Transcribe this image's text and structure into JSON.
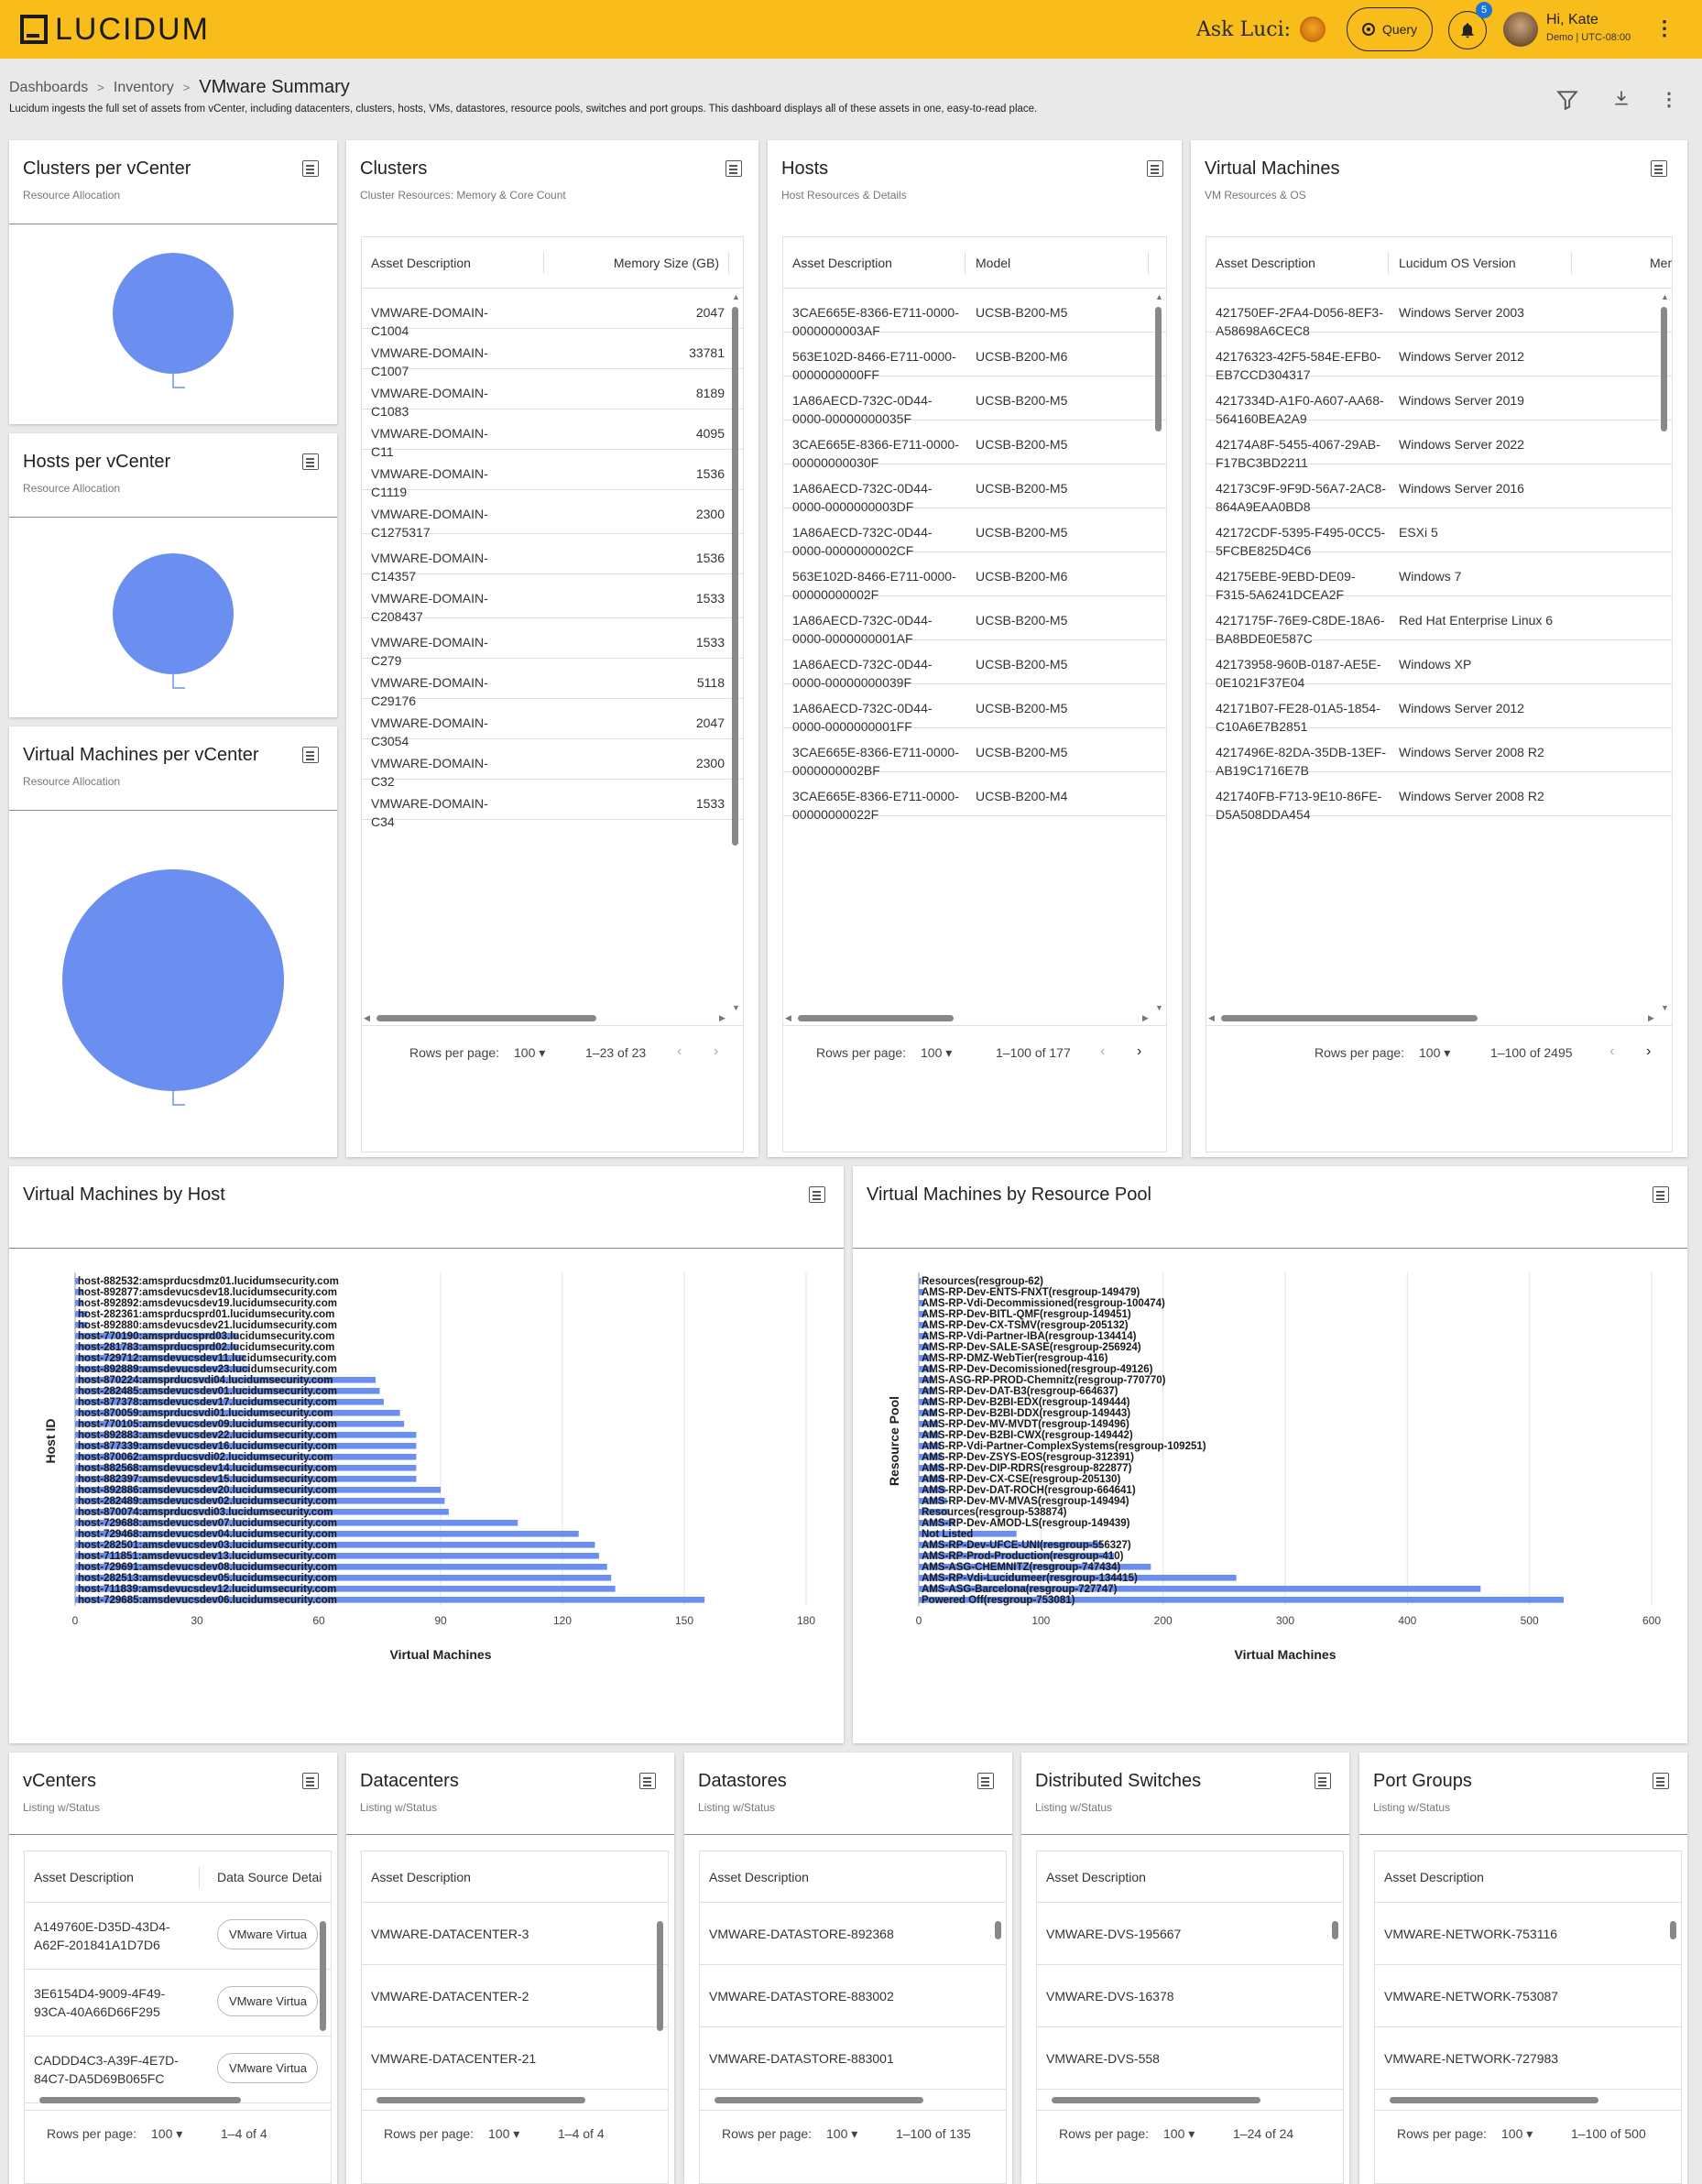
{
  "header": {
    "logo_text": "LUCIDUM",
    "ask_luci": "Ask Luci:",
    "query_label": "Query",
    "notifications_count": "5",
    "user_greeting": "Hi, Kate",
    "user_subtitle": "Demo | UTC-08:00",
    "accent_color": "#f9bd1b"
  },
  "breadcrumb": {
    "items": [
      "Dashboards",
      "Inventory"
    ],
    "current": "VMware Summary",
    "separator": ">"
  },
  "page_description": "Lucidum ingests the full set of assets from vCenter, including datacenters, clusters, hosts, VMs, datastores, resource pools, switches and port groups. This dashboard displays all of these assets in one, easy-to-read place.",
  "pie_panels": [
    {
      "title": "Clusters per vCenter",
      "subtitle": "Resource Allocation"
    },
    {
      "title": "Hosts per vCenter",
      "subtitle": "Resource Allocation"
    },
    {
      "title": "Virtual Machines per vCenter",
      "subtitle": "Resource Allocation"
    }
  ],
  "clusters": {
    "title": "Clusters",
    "subtitle": "Cluster Resources: Memory & Core Count",
    "columns": [
      "Asset Description",
      "Memory Size (GB)"
    ],
    "rows": [
      [
        "VMWARE-DOMAIN-C1004",
        "2047"
      ],
      [
        "VMWARE-DOMAIN-C1007",
        "33781"
      ],
      [
        "VMWARE-DOMAIN-C1083",
        "8189"
      ],
      [
        "VMWARE-DOMAIN-C11",
        "4095"
      ],
      [
        "VMWARE-DOMAIN-C1119",
        "1536"
      ],
      [
        "VMWARE-DOMAIN-C1275317",
        "2300"
      ],
      [
        "VMWARE-DOMAIN-C14357",
        "1536"
      ],
      [
        "VMWARE-DOMAIN-C208437",
        "1533"
      ],
      [
        "VMWARE-DOMAIN-C279",
        "1533"
      ],
      [
        "VMWARE-DOMAIN-C29176",
        "5118"
      ],
      [
        "VMWARE-DOMAIN-C3054",
        "2047"
      ],
      [
        "VMWARE-DOMAIN-C32",
        "2300"
      ],
      [
        "VMWARE-DOMAIN-C34",
        "1533"
      ]
    ],
    "rows_per_page_label": "Rows per page:",
    "rows_per_page": "100",
    "range": "1–23 of 23"
  },
  "hosts": {
    "title": "Hosts",
    "subtitle": "Host Resources & Details",
    "columns": [
      "Asset Description",
      "Model"
    ],
    "rows": [
      [
        "3CAE665E-8366-E711-0000-0000000003AF",
        "UCSB-B200-M5"
      ],
      [
        "563E102D-8466-E711-0000-0000000000FF",
        "UCSB-B200-M6"
      ],
      [
        "1A86AECD-732C-0D44-0000-00000000035F",
        "UCSB-B200-M5"
      ],
      [
        "3CAE665E-8366-E711-0000-00000000030F",
        "UCSB-B200-M5"
      ],
      [
        "1A86AECD-732C-0D44-0000-0000000003DF",
        "UCSB-B200-M5"
      ],
      [
        "1A86AECD-732C-0D44-0000-0000000002CF",
        "UCSB-B200-M5"
      ],
      [
        "563E102D-8466-E711-0000-00000000002F",
        "UCSB-B200-M6"
      ],
      [
        "1A86AECD-732C-0D44-0000-0000000001AF",
        "UCSB-B200-M5"
      ],
      [
        "1A86AECD-732C-0D44-0000-00000000039F",
        "UCSB-B200-M5"
      ],
      [
        "1A86AECD-732C-0D44-0000-0000000001FF",
        "UCSB-B200-M5"
      ],
      [
        "3CAE665E-8366-E711-0000-0000000002BF",
        "UCSB-B200-M5"
      ],
      [
        "3CAE665E-8366-E711-0000-00000000022F",
        "UCSB-B200-M4"
      ]
    ],
    "rows_per_page_label": "Rows per page:",
    "rows_per_page": "100",
    "range": "1–100 of 177"
  },
  "vms": {
    "title": "Virtual Machines",
    "subtitle": "VM Resources & OS",
    "columns": [
      "Asset Description",
      "Lucidum OS Version",
      "Memo"
    ],
    "rows": [
      [
        "421750EF-2FA4-D056-8EF3-A58698A6CEC8",
        "Windows Server 2003"
      ],
      [
        "42176323-42F5-584E-EFB0-EB7CCD304317",
        "Windows Server 2012"
      ],
      [
        "4217334D-A1F0-A607-AA68-564160BEA2A9",
        "Windows Server 2019"
      ],
      [
        "42174A8F-5455-4067-29AB-F17BC3BD2211",
        "Windows Server 2022"
      ],
      [
        "42173C9F-9F9D-56A7-2AC8-864A9EAA0BD8",
        "Windows Server 2016"
      ],
      [
        "42172CDF-5395-F495-0CC5-5FCBE825D4C6",
        "ESXi 5"
      ],
      [
        "42175EBE-9EBD-DE09-F315-5A6241DCEA2F",
        "Windows 7"
      ],
      [
        "4217175F-76E9-C8DE-18A6-BA8BDE0E587C",
        "Red Hat Enterprise Linux 6"
      ],
      [
        "42173958-960B-0187-AE5E-0E1021F37E04",
        "Windows XP"
      ],
      [
        "42171B07-FE28-01A5-1854-C10A6E7B2851",
        "Windows Server 2012"
      ],
      [
        "4217496E-82DA-35DB-13EF-AB19C1716E7B",
        "Windows Server 2008 R2"
      ],
      [
        "421740FB-F713-9E10-86FE-D5A508DDA454",
        "Windows Server 2008 R2"
      ]
    ],
    "rows_per_page_label": "Rows per page:",
    "rows_per_page": "100",
    "range": "1–100 of 2495"
  },
  "vm_by_host": {
    "title": "Virtual Machines by Host",
    "chart_data": {
      "type": "bar",
      "orientation": "horizontal",
      "xlabel": "Virtual Machines",
      "ylabel": "Host ID",
      "xlim": [
        0,
        180
      ],
      "xticks": [
        0,
        30,
        60,
        90,
        120,
        150,
        180
      ],
      "categories": [
        "host-882532:amsprducsdmz01.lucidumsecurity.com",
        "host-892877:amsdevucsdev18.lucidumsecurity.com",
        "host-892892:amsdevucsdev19.lucidumsecurity.com",
        "host-282361:amsprducsprd01.lucidumsecurity.com",
        "host-892880:amsdevucsdev21.lucidumsecurity.com",
        "host-770190:amsprducsprd03.lucidumsecurity.com",
        "host-281783:amsprducsprd02.lucidumsecurity.com",
        "host-729712:amsdevucsdev11.lucidumsecurity.com",
        "host-892889:amsdevucsdev23.lucidumsecurity.com",
        "host-870224:amsprducsvdi04.lucidumsecurity.com",
        "host-282485:amsdevucsdev01.lucidumsecurity.com",
        "host-877378:amsdevucsdev17.lucidumsecurity.com",
        "host-870059:amsprducsvdi01.lucidumsecurity.com",
        "host-770105:amsdevucsdev09.lucidumsecurity.com",
        "host-892883:amsdevucsdev22.lucidumsecurity.com",
        "host-877339:amsdevucsdev16.lucidumsecurity.com",
        "host-870062:amsprducsvdi02.lucidumsecurity.com",
        "host-882568:amsdevucsdev14.lucidumsecurity.com",
        "host-882397:amsdevucsdev15.lucidumsecurity.com",
        "host-892886:amsdevucsdev20.lucidumsecurity.com",
        "host-282489:amsdevucsdev02.lucidumsecurity.com",
        "host-870074:amsprducsvdi03.lucidumsecurity.com",
        "host-729688:amsdevucsdev07.lucidumsecurity.com",
        "host-729468:amsdevucsdev04.lucidumsecurity.com",
        "host-282501:amsdevucsdev03.lucidumsecurity.com",
        "host-711851:amsdevucsdev13.lucidumsecurity.com",
        "host-729691:amsdevucsdev08.lucidumsecurity.com",
        "host-282513:amsdevucsdev05.lucidumsecurity.com",
        "host-711839:amsdevucsdev12.lucidumsecurity.com",
        "host-729685:amsdevucsdev06.lucidumsecurity.com"
      ],
      "values": [
        1,
        2,
        2,
        3,
        3,
        40,
        40,
        42,
        43,
        74,
        75,
        76,
        80,
        81,
        84,
        84,
        84,
        84,
        84,
        90,
        91,
        92,
        109,
        124,
        128,
        129,
        131,
        132,
        133,
        155
      ],
      "bar_color": "#6a8ff0",
      "grid": true
    }
  },
  "vm_by_pool": {
    "title": "Virtual Machines by Resource Pool",
    "chart_data": {
      "type": "bar",
      "orientation": "horizontal",
      "xlabel": "Virtual Machines",
      "ylabel": "Resource Pool",
      "xlim": [
        0,
        600
      ],
      "xticks": [
        0,
        100,
        200,
        300,
        400,
        500,
        600
      ],
      "categories": [
        "Resources(resgroup-62)",
        "AMS-RP-Dev-ENTS-FNXT(resgroup-149479)",
        "AMS-RP-Vdi-Decommissioned(resgroup-100474)",
        "AMS-RP-Dev-BITL-QMF(resgroup-149451)",
        "AMS-RP-Dev-CX-TSMV(resgroup-205132)",
        "AMS-RP-Vdi-Partner-IBA(resgroup-134414)",
        "AMS-RP-Dev-SALE-SASE(resgroup-256924)",
        "AMS-RP-DMZ-WebTier(resgroup-416)",
        "AMS-RP-Dev-Decomissioned(resgroup-49126)",
        "AMS-ASG-RP-PROD-Chemnitz(resgroup-770770)",
        "AMS-RP-Dev-DAT-B3(resgroup-664637)",
        "AMS-RP-Dev-B2BI-EDX(resgroup-149444)",
        "AMS-RP-Dev-B2BI-DDX(resgroup-149443)",
        "AMS-RP-Dev-MV-MVDT(resgroup-149496)",
        "AMS-RP-Dev-B2BI-CWX(resgroup-149442)",
        "AMS-RP-Vdi-Partner-ComplexSystems(resgroup-109251)",
        "AMS-RP-Dev-ZSYS-EOS(resgroup-312391)",
        "AMS-RP-Dev-DIP-RDRS(resgroup-822877)",
        "AMS-RP-Dev-CX-CSE(resgroup-205130)",
        "AMS-RP-Dev-DAT-ROCH(resgroup-664641)",
        "AMS-RP-Dev-MV-MVAS(resgroup-149494)",
        "Resources(resgroup-538874)",
        "AMS-RP-Dev-AMOD-LS(resgroup-149439)",
        "Not Listed",
        "AMS-RP-Dev-UFCE-UNI(resgroup-556327)",
        "AMS-RP-Prod-Production(resgroup-410)",
        "AMS-ASG-CHEMNITZ(resgroup-747434)",
        "AMS-RP-Vdi-Lucidumeer(resgroup-134415)",
        "AMS-ASG-Barcelona(resgroup-727747)",
        "Powered Off(resgroup-753081)"
      ],
      "values": [
        2,
        4,
        5,
        6,
        7,
        8,
        9,
        10,
        11,
        12,
        13,
        14,
        15,
        16,
        17,
        18,
        19,
        20,
        21,
        22,
        23,
        25,
        30,
        80,
        150,
        160,
        190,
        260,
        460,
        528
      ],
      "bar_color": "#6a8ff0",
      "grid": true
    }
  },
  "vcenters": {
    "title": "vCenters",
    "subtitle": "Listing w/Status",
    "columns": [
      "Asset Description",
      "Data Source Detai"
    ],
    "rows": [
      [
        "A149760E-D35D-43D4-A62F-201841A1D7D6",
        "VMware Virtua"
      ],
      [
        "3E6154D4-9009-4F49-93CA-40A66D66F295",
        "VMware Virtua"
      ],
      [
        "CADDD4C3-A39F-4E7D-84C7-DA5D69B065FC",
        "VMware Virtua"
      ]
    ],
    "rows_per_page_label": "Rows per page:",
    "rows_per_page": "100",
    "range": "1–4 of 4"
  },
  "datacenters": {
    "title": "Datacenters",
    "subtitle": "Listing w/Status",
    "columns": [
      "Asset Description"
    ],
    "rows": [
      [
        "VMWARE-DATACENTER-3"
      ],
      [
        "VMWARE-DATACENTER-2"
      ],
      [
        "VMWARE-DATACENTER-21"
      ]
    ],
    "rows_per_page_label": "Rows per page:",
    "rows_per_page": "100",
    "range": "1–4 of 4"
  },
  "datastores": {
    "title": "Datastores",
    "subtitle": "Listing w/Status",
    "columns": [
      "Asset Description"
    ],
    "rows": [
      [
        "VMWARE-DATASTORE-892368"
      ],
      [
        "VMWARE-DATASTORE-883002"
      ],
      [
        "VMWARE-DATASTORE-883001"
      ]
    ],
    "rows_per_page_label": "Rows per page:",
    "rows_per_page": "100",
    "range": "1–100 of 135"
  },
  "switches": {
    "title": "Distributed Switches",
    "subtitle": "Listing w/Status",
    "columns": [
      "Asset Description"
    ],
    "rows": [
      [
        "VMWARE-DVS-195667"
      ],
      [
        "VMWARE-DVS-16378"
      ],
      [
        "VMWARE-DVS-558"
      ]
    ],
    "rows_per_page_label": "Rows per page:",
    "rows_per_page": "100",
    "range": "1–24 of 24"
  },
  "portgroups": {
    "title": "Port Groups",
    "subtitle": "Listing w/Status",
    "columns": [
      "Asset Description"
    ],
    "rows": [
      [
        "VMWARE-NETWORK-753116"
      ],
      [
        "VMWARE-NETWORK-753087"
      ],
      [
        "VMWARE-NETWORK-727983"
      ]
    ],
    "rows_per_page_label": "Rows per page:",
    "rows_per_page": "100",
    "range": "1–100 of 500"
  }
}
